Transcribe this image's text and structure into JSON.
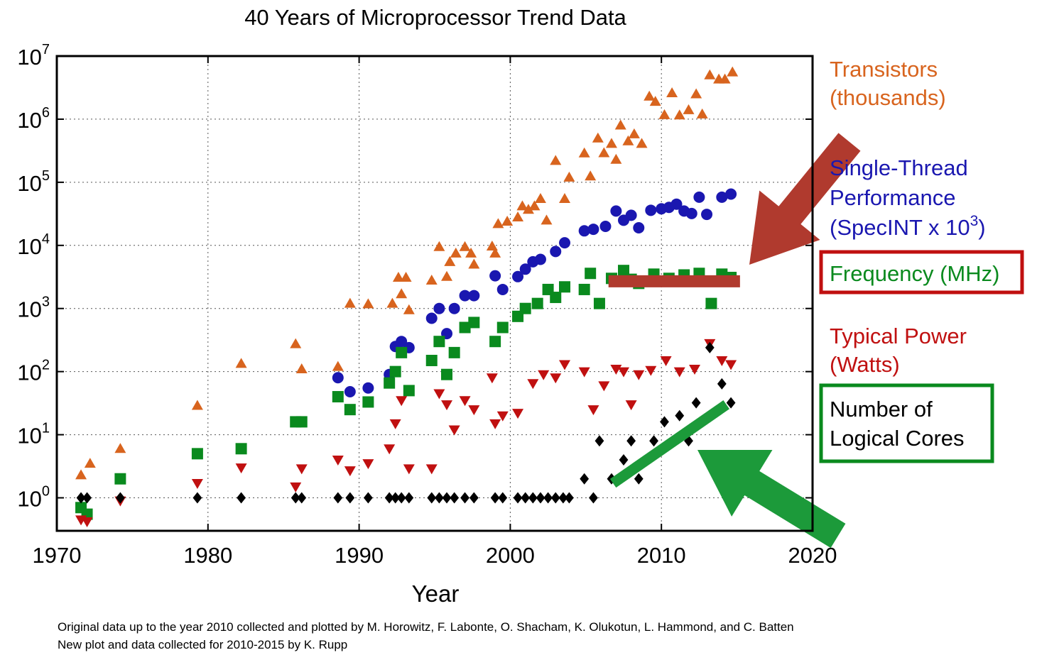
{
  "chart_data": {
    "type": "scatter",
    "title": "40 Years of Microprocessor Trend Data",
    "xlabel": "Year",
    "ylabel": "",
    "xlim": [
      1970,
      2020
    ],
    "ylim": [
      0.3,
      10000000
    ],
    "yscale": "log",
    "grid": true,
    "legend_placement": "right",
    "x_ticks": [
      "1970",
      "1980",
      "1990",
      "2000",
      "2010",
      "2020"
    ],
    "y_ticks": [
      {
        "base": "10",
        "exp": "0"
      },
      {
        "base": "10",
        "exp": "1"
      },
      {
        "base": "10",
        "exp": "2"
      },
      {
        "base": "10",
        "exp": "3"
      },
      {
        "base": "10",
        "exp": "4"
      },
      {
        "base": "10",
        "exp": "5"
      },
      {
        "base": "10",
        "exp": "6"
      },
      {
        "base": "10",
        "exp": "7"
      }
    ],
    "series": [
      {
        "name": "Transistors (thousands)",
        "legend_lines": [
          "Transistors",
          "(thousands)"
        ],
        "marker": "triangle-up",
        "color": "#d8641e",
        "x": [
          1971.6,
          1972.2,
          1974.2,
          1979.3,
          1982.2,
          1985.8,
          1986.2,
          1988.6,
          1989.4,
          1990.6,
          1992.2,
          1992.6,
          1992.8,
          1993.1,
          1993.3,
          1994.8,
          1995.3,
          1995.8,
          1996.0,
          1996.4,
          1997.0,
          1997.4,
          1997.6,
          1998.8,
          1999.0,
          1999.2,
          1999.8,
          2000.5,
          2000.8,
          2001.2,
          2001.6,
          2002.0,
          2002.4,
          2003.0,
          2003.6,
          2003.9,
          2004.9,
          2005.3,
          2005.8,
          2006.2,
          2006.7,
          2007.0,
          2007.3,
          2007.8,
          2008.2,
          2008.7,
          2009.2,
          2009.6,
          2010.2,
          2010.7,
          2011.2,
          2011.8,
          2012.3,
          2012.7,
          2013.2,
          2013.8,
          2014.2,
          2014.7
        ],
        "y": [
          2.3,
          3.5,
          6,
          29,
          134,
          275,
          110,
          120,
          1200,
          1180,
          1200,
          3100,
          1700,
          3100,
          950,
          2800,
          9500,
          3200,
          5500,
          7500,
          9500,
          7500,
          5000,
          9700,
          7500,
          22000,
          24000,
          28000,
          42000,
          37000,
          42000,
          55000,
          25000,
          220000,
          55000,
          120000,
          290000,
          125000,
          500000,
          292000,
          410000,
          230000,
          800000,
          450000,
          582000,
          410000,
          2300000,
          1900000,
          1170000,
          2600000,
          1160000,
          1400000,
          2500000,
          1200000,
          5000000,
          4300000,
          4300000,
          5560000
        ]
      },
      {
        "name": "Single-Thread Performance (SpecINT x 10^3)",
        "legend_lines": [
          "Single-Thread",
          "Performance",
          "(SpecINT x 10",
          "3",
          ")"
        ],
        "marker": "circle",
        "color": "#1a17b0",
        "x": [
          1988.6,
          1989.4,
          1990.6,
          1992.0,
          1992.4,
          1992.8,
          1993.3,
          1994.8,
          1995.3,
          1995.8,
          1996.3,
          1997.0,
          1997.6,
          1999.0,
          1999.5,
          2000.5,
          2001.0,
          2001.5,
          2002.0,
          2003.0,
          2003.6,
          2004.9,
          2005.5,
          2006.3,
          2007.0,
          2007.5,
          2008.0,
          2008.5,
          2009.3,
          2010.0,
          2010.5,
          2011.0,
          2011.5,
          2012.0,
          2012.5,
          2013.0,
          2014.0,
          2014.6
        ],
        "y": [
          80,
          48,
          55,
          90,
          250,
          300,
          240,
          700,
          1000,
          400,
          1000,
          1600,
          1600,
          3300,
          2000,
          3200,
          4200,
          5500,
          6000,
          8000,
          11000,
          17000,
          18000,
          20000,
          35000,
          25000,
          30000,
          19000,
          36000,
          38000,
          40000,
          45000,
          35000,
          32000,
          58000,
          31000,
          58000,
          65000
        ]
      },
      {
        "name": "Frequency (MHz)",
        "legend_lines": [
          "Frequency (MHz)"
        ],
        "marker": "square",
        "color": "#0a8a1e",
        "x": [
          1971.6,
          1972.0,
          1974.2,
          1979.3,
          1982.2,
          1985.8,
          1986.2,
          1988.6,
          1989.4,
          1990.6,
          1992.0,
          1992.4,
          1992.8,
          1993.3,
          1994.8,
          1995.3,
          1995.8,
          1996.3,
          1997.0,
          1997.6,
          1999.0,
          1999.5,
          2000.5,
          2001.0,
          2001.8,
          2002.5,
          2003.0,
          2003.6,
          2004.9,
          2005.3,
          2005.9,
          2006.7,
          2007.5,
          2008.0,
          2008.5,
          2009.5,
          2010.5,
          2011.5,
          2012.5,
          2013.3,
          2014.0,
          2014.6
        ],
        "y": [
          0.7,
          0.55,
          2,
          5,
          6,
          16,
          16,
          40,
          25,
          33,
          66,
          100,
          200,
          50,
          150,
          300,
          90,
          200,
          500,
          600,
          300,
          500,
          750,
          1000,
          1200,
          2000,
          1500,
          2200,
          2000,
          3600,
          1200,
          3000,
          4000,
          2900,
          2500,
          3500,
          3000,
          3400,
          3600,
          1200,
          3500,
          3100
        ]
      },
      {
        "name": "Typical Power (Watts)",
        "legend_lines": [
          "Typical Power",
          "(Watts)"
        ],
        "marker": "triangle-down",
        "color": "#c01010",
        "x": [
          1971.6,
          1972.0,
          1974.2,
          1979.3,
          1982.2,
          1985.8,
          1986.2,
          1988.6,
          1989.4,
          1990.6,
          1992.0,
          1992.4,
          1992.8,
          1993.3,
          1994.8,
          1995.3,
          1995.8,
          1996.3,
          1997.0,
          1997.6,
          1998.8,
          1999.0,
          1999.5,
          2000.5,
          2001.5,
          2002.2,
          2003.0,
          2003.6,
          2004.9,
          2005.5,
          2006.2,
          2007.0,
          2007.5,
          2008.0,
          2008.5,
          2009.3,
          2010.3,
          2011.2,
          2012.2,
          2013.2,
          2014.0,
          2014.6
        ],
        "y": [
          0.45,
          0.42,
          0.9,
          1.7,
          3,
          1.5,
          2.9,
          4,
          2.7,
          3.5,
          6,
          15,
          35,
          2.9,
          2.9,
          45,
          30,
          12,
          35,
          25,
          80,
          15,
          20,
          22,
          65,
          90,
          80,
          130,
          100,
          25,
          60,
          110,
          100,
          30,
          90,
          105,
          150,
          100,
          110,
          280,
          150,
          130
        ]
      },
      {
        "name": "Number of Logical Cores",
        "legend_lines": [
          "Number of",
          "Logical Cores"
        ],
        "marker": "diamond",
        "color": "#000000",
        "x": [
          1971.6,
          1972.0,
          1974.2,
          1979.3,
          1982.2,
          1985.8,
          1986.2,
          1988.6,
          1989.4,
          1990.6,
          1992.0,
          1992.4,
          1992.8,
          1993.3,
          1994.8,
          1995.3,
          1995.8,
          1996.3,
          1997.0,
          1997.6,
          1999.0,
          1999.5,
          2000.5,
          2001.0,
          2001.5,
          2002.0,
          2002.5,
          2003.0,
          2003.5,
          2003.9,
          2004.9,
          2005.5,
          2005.9,
          2006.7,
          2007.5,
          2008.0,
          2008.5,
          2009.0,
          2009.5,
          2010.2,
          2011.2,
          2011.8,
          2012.3,
          2013.2,
          2014.0,
          2014.6
        ],
        "y": [
          1,
          1,
          1,
          1,
          1,
          1,
          1,
          1,
          1,
          1,
          1,
          1,
          1,
          1,
          1,
          1,
          1,
          1,
          1,
          1,
          1,
          1,
          1,
          1,
          1,
          1,
          1,
          1,
          1,
          1,
          2,
          1,
          8,
          2,
          4,
          8,
          2,
          4,
          8,
          16,
          20,
          8,
          32,
          240,
          64,
          32
        ]
      }
    ],
    "annotations": [
      {
        "type": "line",
        "color": "#b03a2e",
        "from": [
          2006.5,
          2700
        ],
        "to": [
          2015.2,
          2700
        ]
      },
      {
        "type": "line",
        "color": "#1c9a3a",
        "from": [
          2006.8,
          1.7
        ],
        "to": [
          2014.3,
          30
        ]
      },
      {
        "type": "arrow",
        "color": "#b03a2e",
        "points_to": "Frequency (MHz)"
      },
      {
        "type": "arrow",
        "color": "#1c9a3a",
        "points_to": "Number of Logical Cores"
      },
      {
        "type": "box",
        "color": "#c01010",
        "around": "Frequency (MHz)"
      },
      {
        "type": "box",
        "color": "#0a8a1e",
        "around": "Number of Logical Cores"
      }
    ],
    "credits": [
      "Original data up to the year 2010 collected and plotted by M. Horowitz, F. Labonte, O. Shacham, K. Olukotun, L. Hammond, and C. Batten",
      "New plot and data collected for 2010-2015 by K. Rupp"
    ]
  }
}
